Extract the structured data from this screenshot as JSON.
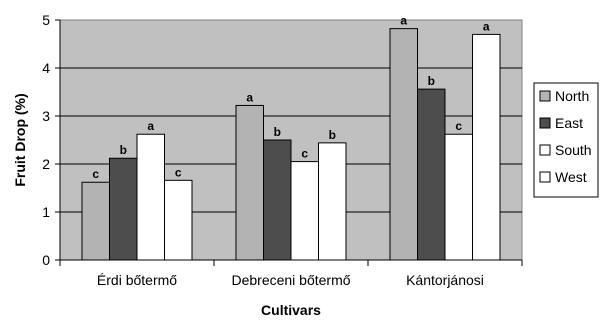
{
  "chart_data": {
    "type": "bar",
    "title": "",
    "xlabel": "Cultivars",
    "ylabel": "Fruit Drop (%)",
    "ylim": [
      0,
      5
    ],
    "yticks": [
      0,
      1,
      2,
      3,
      4,
      5
    ],
    "grid": true,
    "legend_position": "right",
    "categories": [
      "Érdi bőtermő",
      "Debreceni bőtermő",
      "Kántorjánosi"
    ],
    "series": [
      {
        "name": "North",
        "color": "#b3b3b3",
        "values": [
          1.62,
          3.22,
          4.82
        ],
        "labels": [
          "c",
          "a",
          "a"
        ]
      },
      {
        "name": "East",
        "color": "#4d4d4d",
        "values": [
          2.12,
          2.5,
          3.56
        ],
        "labels": [
          "b",
          "b",
          "b"
        ]
      },
      {
        "name": "South",
        "color": "#ffffff",
        "values": [
          2.62,
          2.05,
          2.62
        ],
        "labels": [
          "a",
          "c",
          "c"
        ]
      },
      {
        "name": "West",
        "color": "#ffffff",
        "values": [
          1.66,
          2.44,
          4.7
        ],
        "labels": [
          "c",
          "b",
          "a"
        ]
      }
    ],
    "plot_background": "#c0c0c0"
  }
}
